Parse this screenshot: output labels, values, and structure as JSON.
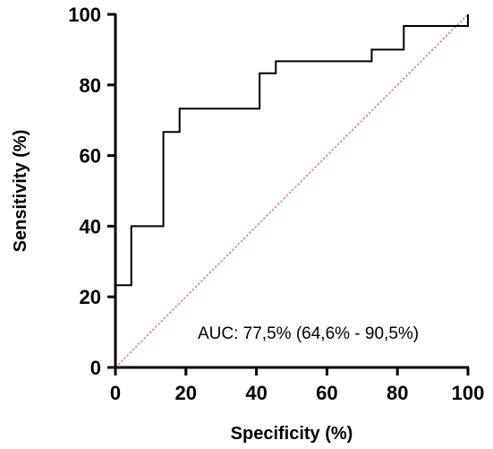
{
  "chart_data": {
    "type": "line",
    "title": "",
    "xlabel": "Specificity (%)",
    "ylabel": "Sensitivity (%)",
    "xlim": [
      0,
      100
    ],
    "ylim": [
      0,
      100
    ],
    "x_ticks": [
      "0",
      "20",
      "40",
      "60",
      "80",
      "100"
    ],
    "y_ticks": [
      "0",
      "20",
      "40",
      "60",
      "80",
      "100"
    ],
    "grid": false,
    "annotation": "AUC:  77,5% (64,6% - 90,5%)",
    "series": [
      {
        "kind": "roc-step",
        "color": "#000000",
        "x": [
          0,
          0,
          4.5,
          4.5,
          13.6,
          13.6,
          18.2,
          18.2,
          40.9,
          40.9,
          45.5,
          45.5,
          72.7,
          72.7,
          81.8,
          81.8,
          100,
          100
        ],
        "y": [
          0,
          23.3,
          23.3,
          40,
          40,
          66.7,
          66.7,
          73.3,
          73.3,
          83.3,
          83.3,
          86.7,
          86.7,
          90,
          90,
          96.7,
          96.7,
          100
        ]
      },
      {
        "kind": "reference-diagonal",
        "color": "#d9736a",
        "x": [
          0,
          100
        ],
        "y": [
          0,
          100
        ]
      }
    ]
  }
}
